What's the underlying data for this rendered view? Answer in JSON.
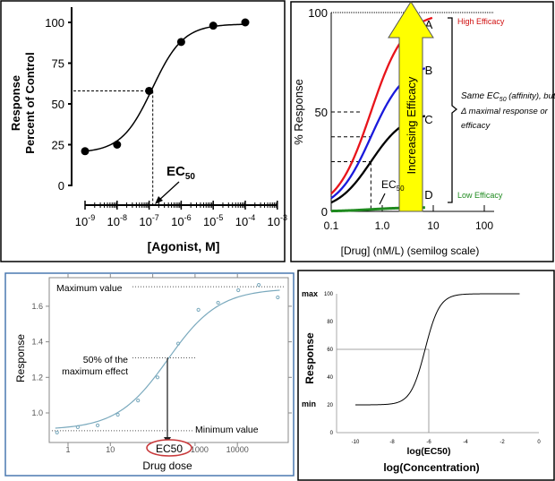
{
  "chart_data": [
    {
      "type": "scatter",
      "xscale": "log",
      "xlabel": "[Agonist, M]",
      "ylabel_lines": [
        "Response",
        "Percent of Control"
      ],
      "xticks": [
        "10^-9",
        "10^-8",
        "10^-7",
        "10^-6",
        "10^-5",
        "10^-4",
        "10^-3"
      ],
      "yticks": [
        "0",
        "25",
        "50",
        "75",
        "100"
      ],
      "ylim": [
        0,
        100
      ],
      "x": [
        1e-09,
        1e-08,
        1e-07,
        1e-06,
        1e-05,
        0.0001
      ],
      "y": [
        21,
        25,
        58,
        88,
        98,
        100
      ],
      "fit_line": true,
      "annotation": {
        "text": "EC",
        "sub": "50",
        "x": 1.3e-07,
        "y": 58
      }
    },
    {
      "type": "line",
      "xscale": "log",
      "xlabel": "[Drug] (nM/L) (semilog scale)",
      "ylabel": "% Response",
      "xticks": [
        "0.1",
        "1.0",
        "10",
        "100"
      ],
      "yticks": [
        "0",
        "50",
        "100"
      ],
      "ylim": [
        0,
        100
      ],
      "ec50": 0.6,
      "series": [
        {
          "name": "A",
          "max": 100,
          "color": "#e8141b"
        },
        {
          "name": "B",
          "max": 75,
          "color": "#1a1adc"
        },
        {
          "name": "C",
          "max": 50,
          "color": "#000000"
        },
        {
          "name": "D",
          "max": 2,
          "color": "#1f8a1f"
        }
      ],
      "labels": {
        "high": "High Efficacy",
        "low": "Low Efficacy",
        "ec50": "EC",
        "ec50_sub": "50",
        "arrow": "Increasing Efficacy",
        "brace_note": [
          "Same EC",
          "50",
          " (affinity), but",
          "Δ maximal response or",
          "efficacy"
        ]
      },
      "arrow_color": "#ffff00"
    },
    {
      "type": "scatter",
      "xscale": "log",
      "xlabel": "Drug dose",
      "ylabel": "Response",
      "xticks": [
        "1",
        "10",
        "1000",
        "10000"
      ],
      "yticks": [
        "1.0",
        "1.2",
        "1.4",
        "1.6"
      ],
      "ylim": [
        0.85,
        1.75
      ],
      "x": [
        0.55,
        1.7,
        5,
        15,
        45,
        130,
        400,
        1200,
        3500,
        10500,
        32000,
        90000
      ],
      "y": [
        0.89,
        0.92,
        0.93,
        0.99,
        1.07,
        1.2,
        1.39,
        1.58,
        1.62,
        1.69,
        1.72,
        1.65
      ],
      "min_value": 0.9,
      "max_value": 1.71,
      "ec50": 230,
      "half_value": 1.31,
      "labels": {
        "max": "Maximum value",
        "min": "Minimum value",
        "half": [
          "50% of the",
          "maximum effect"
        ],
        "ec50": "EC50"
      },
      "line_color": "#7aa9bd"
    },
    {
      "type": "line",
      "xlabel": "log(Concentration)",
      "ylabel": "Response",
      "xticks": [
        "-10",
        "-8",
        "-6",
        "-4",
        "-2",
        "0"
      ],
      "yticks": [
        "0",
        "20",
        "40",
        "60",
        "80",
        "100"
      ],
      "xlim": [
        -11,
        0
      ],
      "ylim": [
        0,
        100
      ],
      "bottom": 20,
      "top": 100,
      "logec50": -6,
      "x_start": -10,
      "x_end": -1,
      "labels": {
        "max": "max",
        "min": "min",
        "ec50": "log(EC50)"
      }
    }
  ]
}
